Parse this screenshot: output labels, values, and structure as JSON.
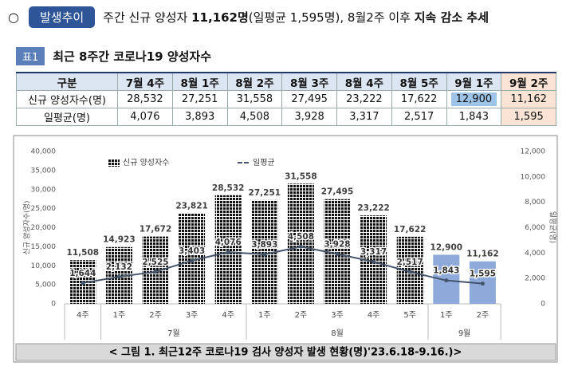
{
  "header": {
    "bullet": "○",
    "badge": "발생추이",
    "segments": [
      {
        "text": "주간 신규 양성자 ",
        "bold": false
      },
      {
        "text": "11,162명",
        "bold": true
      },
      {
        "text": "(일평균 1,595명), 8월2주 이후 ",
        "bold": false
      },
      {
        "text": "지속 감소 추세",
        "bold": true
      }
    ]
  },
  "table": {
    "badge": "표1",
    "title": "최근 8주간 코로나19 양성자수",
    "columns": [
      "구분",
      "7월 4주",
      "8월 1주",
      "8월 2주",
      "8월 3주",
      "8월 4주",
      "8월 5주",
      "9월 1주",
      "9월 2주"
    ],
    "rows": [
      [
        "신규 양성자수(명)",
        "28,532",
        "27,251",
        "31,558",
        "27,495",
        "23,222",
        "17,622",
        "12,900",
        "11,162"
      ],
      [
        "일평균(명)",
        "4,076",
        "3,893",
        "4,508",
        "3,928",
        "3,317",
        "2,517",
        "1,843",
        "1,595"
      ]
    ]
  },
  "chart_data": {
    "type": "bar",
    "caption": "< 그림 1. 최근12주 코로나19 검사 양성자 발생 현황(명)'23.6.18-9.16.)>",
    "categories": [
      "4주",
      "1주",
      "2주",
      "3주",
      "4주",
      "1주",
      "2주",
      "3주",
      "4주",
      "5주",
      "1주",
      "2주"
    ],
    "months": [
      null,
      "7월",
      "7월",
      "7월",
      "7월",
      "8월",
      "8월",
      "8월",
      "8월",
      "8월",
      "9월",
      "9월"
    ],
    "y_label": "신규 양성자수(명)",
    "y2_label": "일평균(명)",
    "ylim": [
      0,
      40000
    ],
    "yticks": [
      0,
      {
        "value": 5000,
        "label": "5,000"
      },
      {
        "value": 10000,
        "label": "10,000"
      },
      {
        "value": 15000,
        "label": "15,000"
      },
      {
        "value": 20000,
        "label": "20,000"
      },
      {
        "value": 25000,
        "label": "25,000"
      },
      {
        "value": 30000,
        "label": "30,000"
      },
      {
        "value": 35000,
        "label": "35,000"
      },
      {
        "value": 40000,
        "label": "40,000"
      }
    ],
    "y2lim": [
      0,
      12000
    ],
    "y2ticks": [
      0,
      {
        "value": 2000,
        "label": "2,000"
      },
      {
        "value": 4000,
        "label": "4,000"
      },
      {
        "value": 6000,
        "label": "6,000"
      },
      {
        "value": 8000,
        "label": "8,000"
      },
      {
        "value": 10000,
        "label": "10,000"
      },
      {
        "value": 12000,
        "label": "12,000"
      }
    ],
    "series": [
      {
        "name": "신규 양성자수",
        "type": "bar",
        "colors": [
          "#a9c2e8",
          "#a9c2e8",
          "#a9c2e8",
          "#a9c2e8",
          "#a9c2e8",
          "#a9c2e8",
          "#a9c2e8",
          "#a9c2e8",
          "#a9c2e8",
          "#a9c2e8",
          "#8eaadb",
          "#8eaadb"
        ],
        "values": [
          11508,
          14923,
          17672,
          23821,
          28532,
          27251,
          31558,
          27495,
          23222,
          17622,
          12900,
          11162
        ],
        "value_labels": [
          "11,508",
          "14,923",
          "17,672",
          "23,821",
          "28,532",
          "27,251",
          "31,558",
          "27,495",
          "23,222",
          "17,622",
          "12,900",
          "11,162"
        ]
      },
      {
        "name": "일평균",
        "type": "line",
        "axis": "y2",
        "color": "#44546a",
        "values": [
          1644,
          2132,
          2525,
          3403,
          4076,
          3893,
          4508,
          3928,
          3317,
          2517,
          1843,
          1595
        ],
        "value_labels": [
          "1,644",
          "2,132",
          "2,525",
          "3,403",
          "4,076",
          "3,893",
          "4,508",
          "3,928",
          "3,317",
          "2,517",
          "1,843",
          "1,595"
        ]
      }
    ]
  }
}
